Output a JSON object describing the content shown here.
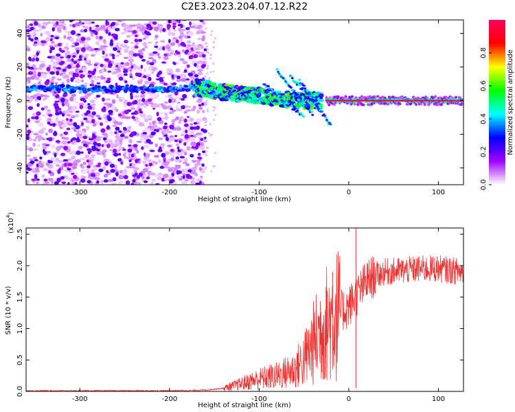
{
  "title": "C2E3.2023.204.07.12.R22",
  "chart_data": [
    {
      "type": "heatmap",
      "xlabel": "Height of straight line (km)",
      "ylabel": "Frequency (Hz)",
      "xlim": [
        -360,
        128
      ],
      "ylim": [
        -50,
        48
      ],
      "xticks": [
        -300,
        -200,
        -100,
        0,
        100
      ],
      "yticks": [
        -40,
        -20,
        0,
        20,
        40
      ],
      "colorbar": {
        "label": "Normalized spectral amplitude",
        "range": [
          0,
          1
        ],
        "ticks": [
          0.0,
          0.2,
          0.4,
          0.6,
          0.8
        ],
        "colors": [
          "#ffffff",
          "#a000ff",
          "#0000ff",
          "#00ffff",
          "#00ff00",
          "#ffff00",
          "#ff0000",
          "#ff0060"
        ]
      },
      "features": {
        "noise_region_x": [
          -360,
          -160
        ],
        "noise_amplitude": 0.2,
        "main_band": [
          {
            "x": -360,
            "f": 8
          },
          {
            "x": -300,
            "f": 7
          },
          {
            "x": -200,
            "f": 7
          },
          {
            "x": -170,
            "f": 8
          },
          {
            "x": -140,
            "f": 5
          },
          {
            "x": -100,
            "f": 3
          },
          {
            "x": -60,
            "f": 0
          },
          {
            "x": -30,
            "f": 0
          },
          {
            "x": 0,
            "f": 0
          },
          {
            "x": 128,
            "f": 0
          }
        ],
        "stable_line_x": [
          -25,
          128
        ],
        "stable_line_amplitude": 0.9
      }
    },
    {
      "type": "line",
      "xlabel": "Height of straight line (km)",
      "ylabel": "SNR (10 * v/v)",
      "yscale_label": "(x10",
      "yscale_exp": "4",
      "xlim": [
        -360,
        128
      ],
      "ylim": [
        0,
        2.6
      ],
      "xticks": [
        -300,
        -200,
        -100,
        0,
        100
      ],
      "yticks": [
        0.0,
        0.5,
        1.0,
        1.5,
        2.0,
        2.5
      ],
      "ytick_labels": [
        "0.0",
        "0.5",
        "1.0",
        "1.5",
        "2.0",
        "2.5"
      ],
      "color": "#ee3333",
      "series": [
        {
          "x": [
            -360,
            -300,
            -250,
            -200,
            -160,
            -140,
            -120,
            -100,
            -80,
            -60,
            -50,
            -40,
            -30,
            -20,
            -10,
            0,
            10,
            20,
            30,
            40,
            60,
            80,
            100,
            128
          ],
          "y": [
            0.01,
            0.01,
            0.01,
            0.01,
            0.02,
            0.05,
            0.12,
            0.2,
            0.25,
            0.35,
            0.5,
            0.75,
            1.0,
            1.15,
            1.25,
            1.35,
            1.55,
            1.75,
            1.85,
            1.9,
            1.92,
            1.95,
            1.95,
            1.9
          ]
        }
      ],
      "spikes": [
        {
          "x": 8,
          "y": 2.6
        },
        {
          "x": 8,
          "y": 0.05
        },
        {
          "x": -10,
          "y": 2.15
        },
        {
          "x": -18,
          "y": 1.9
        }
      ]
    }
  ]
}
